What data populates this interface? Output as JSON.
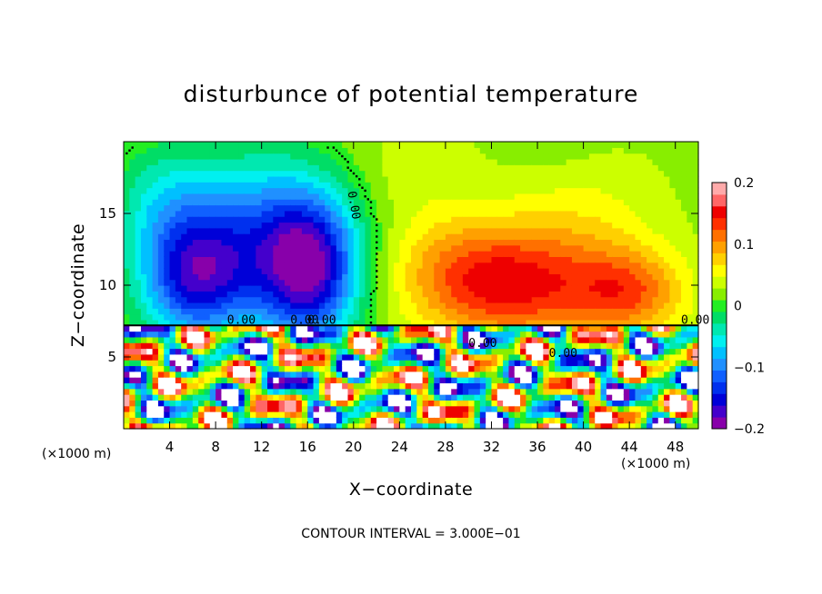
{
  "chart_data": {
    "type": "heatmap",
    "title": "disturbunce of potential temperature",
    "xlabel": "X−coordinate",
    "ylabel": "Z−coordinate",
    "x_unit": "(×1000 m)",
    "x_unit_right": "(×1000 m)",
    "footer": "CONTOUR INTERVAL = 3.000E−01",
    "x_range": [
      0,
      50
    ],
    "y_range": [
      0,
      20
    ],
    "x_ticks": [
      {
        "v": 4,
        "label": "4"
      },
      {
        "v": 8,
        "label": "8"
      },
      {
        "v": 12,
        "label": "12"
      },
      {
        "v": 16,
        "label": "16"
      },
      {
        "v": 20,
        "label": "20"
      },
      {
        "v": 24,
        "label": "24"
      },
      {
        "v": 28,
        "label": "28"
      },
      {
        "v": 32,
        "label": "32"
      },
      {
        "v": 36,
        "label": "36"
      },
      {
        "v": 40,
        "label": "40"
      },
      {
        "v": 44,
        "label": "44"
      },
      {
        "v": 48,
        "label": "48"
      }
    ],
    "y_ticks": [
      {
        "v": 5,
        "label": "5"
      },
      {
        "v": 10,
        "label": "10"
      },
      {
        "v": 15,
        "label": "15"
      }
    ],
    "colorbar": {
      "range": [
        -0.2,
        0.2
      ],
      "ticks": [
        {
          "v": 0.2,
          "label": "0.2"
        },
        {
          "v": 0.1,
          "label": "0.1"
        },
        {
          "v": 0,
          "label": "0"
        },
        {
          "v": -0.1,
          "label": "−0.1"
        },
        {
          "v": -0.2,
          "label": "−0.2"
        }
      ]
    },
    "contour_labels": [
      "0.00",
      "0.00",
      "0.00",
      "0.00",
      "0.00",
      "0.00",
      "0.00"
    ],
    "lower_region_top_z": 7.2,
    "blobs_upper": [
      {
        "x": 6.5,
        "z": 10.5,
        "sx": 5,
        "sy": 4.5,
        "a": -0.17
      },
      {
        "x": 16,
        "z": 11,
        "sx": 4.5,
        "sy": 5,
        "a": -0.2
      },
      {
        "x": 11,
        "z": 15,
        "sx": 8,
        "sy": 5,
        "a": -0.08
      },
      {
        "x": 3,
        "z": 16,
        "sx": 4,
        "sy": 4,
        "a": -0.04
      },
      {
        "x": 34,
        "z": 10,
        "sx": 7,
        "sy": 4,
        "a": 0.11
      },
      {
        "x": 44,
        "z": 9.5,
        "sx": 5,
        "sy": 3,
        "a": 0.09
      },
      {
        "x": 28,
        "z": 11,
        "sx": 6,
        "sy": 4,
        "a": 0.05
      },
      {
        "x": 40,
        "z": 14,
        "sx": 7,
        "sy": 6,
        "a": 0.035
      },
      {
        "x": 25,
        "z": 18,
        "sx": 6,
        "sy": 4,
        "a": 0.02
      },
      {
        "x": 38,
        "z": 19.5,
        "sx": 5,
        "sy": 3,
        "a": -0.012
      }
    ]
  }
}
